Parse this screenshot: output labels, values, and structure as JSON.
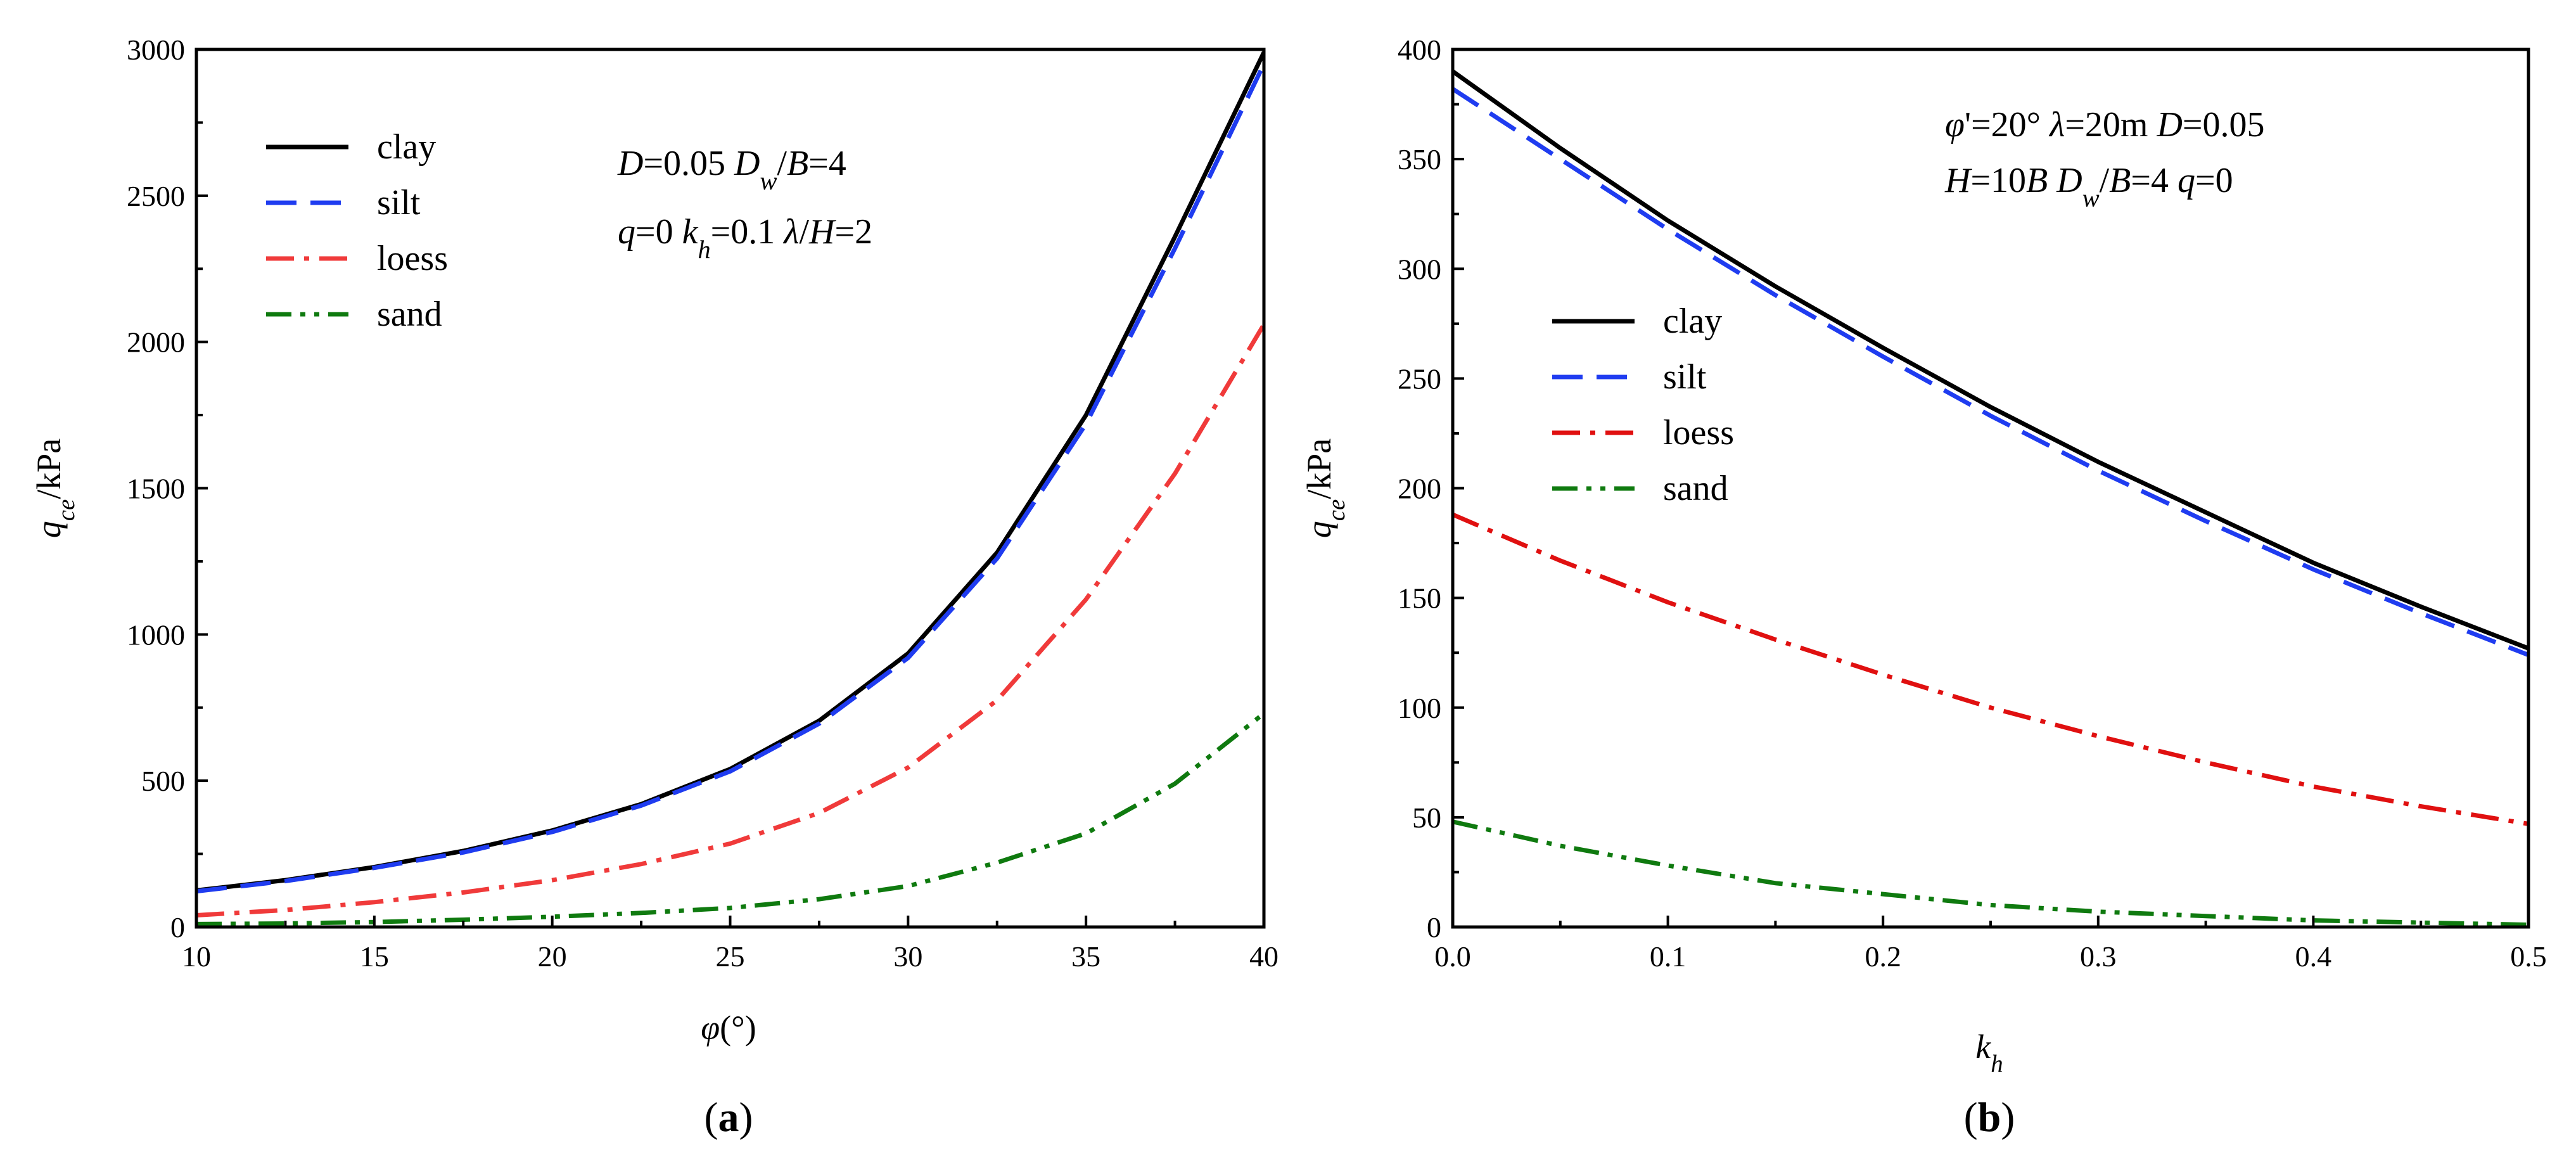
{
  "chart_data": [
    {
      "panel": "(a)",
      "panel_letter": "a",
      "type": "line",
      "xlabel": {
        "main": "φ",
        "suffix": "(°)"
      },
      "ylabel": {
        "main": "q",
        "sub": "ce",
        "suffix": "/kPa"
      },
      "xlim": [
        10,
        40
      ],
      "ylim": [
        0,
        3000
      ],
      "xticks": [
        10,
        15,
        20,
        25,
        30,
        35,
        40
      ],
      "xminor": [
        12.5,
        17.5,
        22.5,
        27.5,
        32.5,
        37.5
      ],
      "yticks": [
        0,
        500,
        1000,
        1500,
        2000,
        2500,
        3000
      ],
      "yminor": [
        250,
        750,
        1250,
        1750,
        2250,
        2750
      ],
      "legend_position": "top-left",
      "annotations": [
        [
          {
            "t": "D",
            "i": true
          },
          {
            "t": "=0.05"
          },
          {
            "t": "    "
          },
          {
            "t": "D",
            "i": true
          },
          {
            "t": "w",
            "i": true,
            "sub": true
          },
          {
            "t": "/"
          },
          {
            "t": "B",
            "i": true
          },
          {
            "t": "=4"
          }
        ],
        [
          {
            "t": "q",
            "i": true
          },
          {
            "t": "=0"
          },
          {
            "t": "   "
          },
          {
            "t": "k",
            "i": true
          },
          {
            "t": "h",
            "i": true,
            "sub": true
          },
          {
            "t": "=0.1"
          },
          {
            "t": "    "
          },
          {
            "t": "λ",
            "i": true
          },
          {
            "t": "/"
          },
          {
            "t": "H",
            "i": true
          },
          {
            "t": "=2"
          }
        ]
      ],
      "x": [
        10,
        12.5,
        15,
        17.5,
        20,
        22.5,
        25,
        27.5,
        30,
        32.5,
        35,
        37.5,
        40
      ],
      "series": [
        {
          "name": "clay",
          "color": "#000000",
          "dash": "solid",
          "values": [
            125,
            160,
            205,
            260,
            330,
            420,
            540,
            705,
            935,
            1280,
            1750,
            2360,
            2990
          ]
        },
        {
          "name": "silt",
          "color": "#1f3cf0",
          "dash": "dash",
          "values": [
            122,
            157,
            202,
            255,
            325,
            415,
            532,
            695,
            920,
            1260,
            1720,
            2320,
            2950
          ]
        },
        {
          "name": "loess",
          "color": "#f03a3a",
          "dash": "dashdot",
          "values": [
            40,
            58,
            85,
            118,
            160,
            215,
            285,
            390,
            545,
            775,
            1120,
            1550,
            2060
          ]
        },
        {
          "name": "sand",
          "color": "#0f7a0f",
          "dash": "dashdotdot",
          "values": [
            10,
            12,
            17,
            25,
            35,
            48,
            65,
            95,
            140,
            220,
            320,
            490,
            730
          ]
        }
      ]
    },
    {
      "panel": "(b)",
      "panel_letter": "b",
      "type": "line",
      "xlabel": {
        "main": "k",
        "sub": "h",
        "suffix": ""
      },
      "ylabel": {
        "main": "q",
        "sub": "ce",
        "suffix": "/kPa"
      },
      "xlim": [
        0.0,
        0.5
      ],
      "ylim": [
        0,
        400
      ],
      "xticks": [
        0.0,
        0.1,
        0.2,
        0.3,
        0.4,
        0.5
      ],
      "xminor": [
        0.05,
        0.15,
        0.25,
        0.35,
        0.45
      ],
      "yticks": [
        0,
        50,
        100,
        150,
        200,
        250,
        300,
        350,
        400
      ],
      "yminor": [
        25,
        75,
        125,
        175,
        225,
        275,
        325,
        375
      ],
      "legend_position": "center-left",
      "annotations": [
        [
          {
            "t": "φ",
            "i": true
          },
          {
            "t": "'=20°"
          },
          {
            "t": "     "
          },
          {
            "t": "λ",
            "i": true
          },
          {
            "t": "=20m  "
          },
          {
            "t": "D",
            "i": true
          },
          {
            "t": "=0.05"
          }
        ],
        [
          {
            "t": "H",
            "i": true
          },
          {
            "t": "=10"
          },
          {
            "t": "B",
            "i": true
          },
          {
            "t": "      "
          },
          {
            "t": "D",
            "i": true
          },
          {
            "t": "w",
            "i": true,
            "sub": true
          },
          {
            "t": "/"
          },
          {
            "t": "B",
            "i": true
          },
          {
            "t": "=4  "
          },
          {
            "t": "q",
            "i": true
          },
          {
            "t": "=0"
          }
        ]
      ],
      "x": [
        0.0,
        0.05,
        0.1,
        0.15,
        0.2,
        0.25,
        0.3,
        0.35,
        0.4,
        0.45,
        0.5
      ],
      "series": [
        {
          "name": "clay",
          "color": "#000000",
          "dash": "solid",
          "values": [
            390,
            355,
            322,
            292,
            264,
            237,
            212,
            189,
            166,
            146,
            127
          ]
        },
        {
          "name": "silt",
          "color": "#1f3cf0",
          "dash": "dash",
          "values": [
            382,
            350,
            318,
            288,
            260,
            233,
            208,
            185,
            163,
            143,
            124
          ]
        },
        {
          "name": "loess",
          "color": "#e01010",
          "dash": "dashdot",
          "values": [
            188,
            167,
            148,
            131,
            115,
            100,
            87,
            75,
            64,
            55,
            47
          ]
        },
        {
          "name": "sand",
          "color": "#0f7a0f",
          "dash": "dashdotdot",
          "values": [
            48,
            37,
            28,
            20,
            15,
            10,
            7,
            5,
            3,
            2,
            1
          ]
        }
      ]
    }
  ]
}
